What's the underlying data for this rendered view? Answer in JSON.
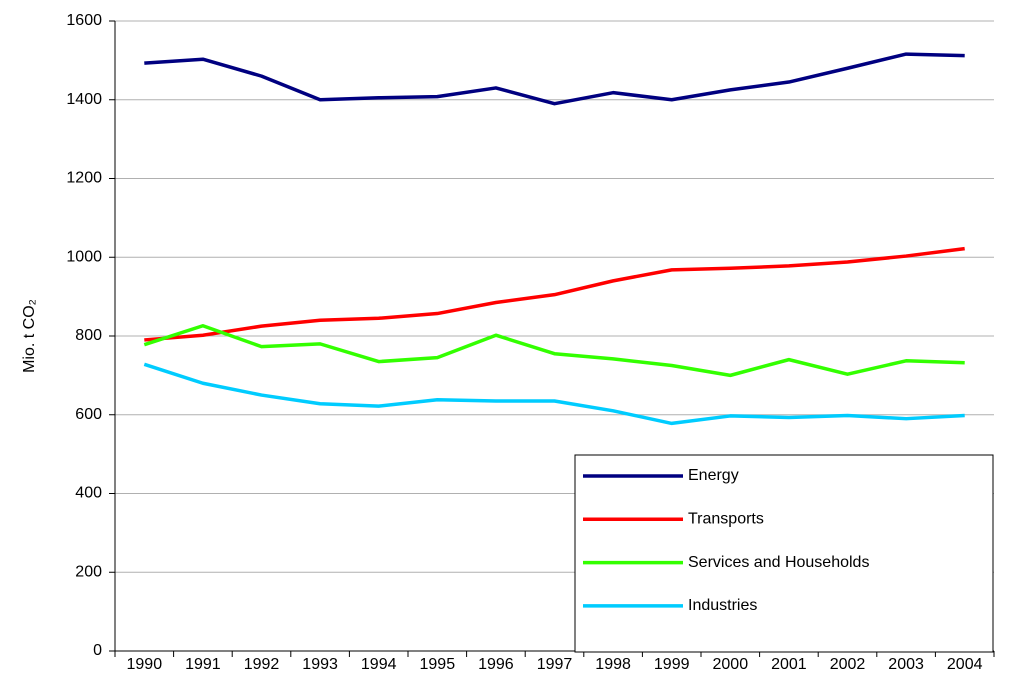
{
  "chart_data": {
    "type": "line",
    "y_label": "Mio. t CO₂",
    "categories": [
      "1990",
      "1991",
      "1992",
      "1993",
      "1994",
      "1995",
      "1996",
      "1997",
      "1998",
      "1999",
      "2000",
      "2001",
      "2002",
      "2003",
      "2004"
    ],
    "series": [
      {
        "name": "Energy",
        "color": "#000080",
        "values": [
          1493,
          1503,
          1460,
          1400,
          1405,
          1408,
          1430,
          1390,
          1418,
          1400,
          1425,
          1445,
          1480,
          1516,
          1512
        ]
      },
      {
        "name": "Transports",
        "color": "#ff0000",
        "values": [
          790,
          802,
          825,
          840,
          845,
          857,
          885,
          905,
          940,
          968,
          972,
          978,
          988,
          1003,
          1022
        ]
      },
      {
        "name": "Services and Households",
        "color": "#33ff00",
        "values": [
          778,
          826,
          773,
          780,
          735,
          745,
          802,
          755,
          742,
          725,
          700,
          740,
          703,
          737,
          732
        ]
      },
      {
        "name": "Industries",
        "color": "#00ccff",
        "values": [
          728,
          680,
          650,
          628,
          622,
          638,
          635,
          635,
          610,
          578,
          597,
          593,
          598,
          590,
          598
        ]
      }
    ],
    "ylim": [
      0,
      1600
    ],
    "yticks": [
      0,
      200,
      400,
      600,
      800,
      1000,
      1200,
      1400,
      1600
    ],
    "grid": true,
    "legend": "bottom-right"
  }
}
